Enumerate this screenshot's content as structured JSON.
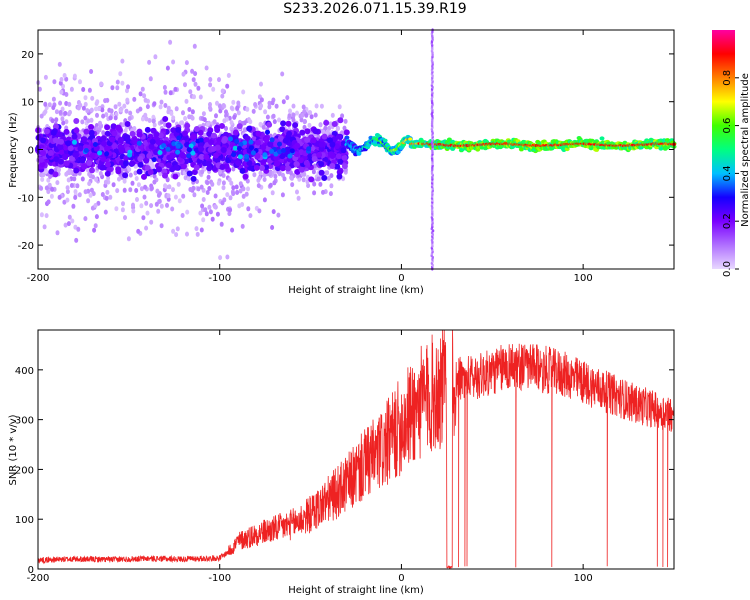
{
  "title": "S233.2026.071.15.39.R19",
  "colors": {
    "snr_line": "#ee2222",
    "frame": "#000000",
    "background": "#ffffff"
  },
  "chart_data": [
    {
      "type": "heatmap",
      "title": "S233.2026.071.15.39.R19",
      "xlabel": "Height of straight line (km)",
      "ylabel": "Frequency (Hz)",
      "xlim": [
        -200,
        150
      ],
      "ylim": [
        -25,
        25
      ],
      "xticks": [
        -200,
        -100,
        0,
        100
      ],
      "yticks": [
        -20,
        -10,
        0,
        10,
        20
      ],
      "colorbar": {
        "label": "Normalized spectral amplitude",
        "range": [
          0.0,
          1.0
        ],
        "ticks": [
          0.0,
          0.2,
          0.4,
          0.6,
          0.8
        ],
        "tick_labels": [
          "0.0",
          "0.2",
          "0.4",
          "0.6",
          "0.8"
        ],
        "colormap": [
          "#e8d8ff",
          "#b070ff",
          "#7a00ff",
          "#1500ff",
          "#00c0ff",
          "#00ff80",
          "#40ff00",
          "#ffff00",
          "#ff8000",
          "#ff0000",
          "#ff00a0"
        ]
      },
      "features": [
        {
          "name": "noisy scatter region",
          "x_range": [
            -200,
            -30
          ],
          "freq_center": 0,
          "freq_spread": 20,
          "amplitude": 0.15
        },
        {
          "name": "coherent tone",
          "x_range": [
            -30,
            150
          ],
          "freq_center": 1,
          "freq_spread": 1,
          "amplitude": 0.8
        },
        {
          "name": "vertical spike",
          "x": 17,
          "freq_range": [
            -25,
            25
          ],
          "amplitude": 0.1
        }
      ]
    },
    {
      "type": "line",
      "xlabel": "Height of straight line (km)",
      "ylabel": "SNR (10 * v/v)",
      "xlim": [
        -200,
        150
      ],
      "ylim": [
        0,
        480
      ],
      "xticks": [
        -200,
        -100,
        0,
        100
      ],
      "yticks": [
        0,
        100,
        200,
        300,
        400
      ],
      "series": [
        {
          "name": "SNR",
          "x": [
            -200,
            -180,
            -160,
            -140,
            -120,
            -100,
            -95,
            -90,
            -80,
            -70,
            -60,
            -50,
            -40,
            -30,
            -20,
            -10,
            0,
            10,
            20,
            30,
            40,
            50,
            60,
            70,
            80,
            90,
            100,
            110,
            120,
            130,
            140,
            150
          ],
          "values": [
            18,
            20,
            19,
            21,
            20,
            22,
            35,
            55,
            70,
            80,
            90,
            110,
            140,
            170,
            210,
            240,
            290,
            330,
            360,
            380,
            385,
            395,
            410,
            405,
            400,
            390,
            375,
            360,
            345,
            330,
            320,
            310
          ]
        }
      ],
      "dropout_note": "many drops to 0 between x = 25 and 150"
    }
  ]
}
